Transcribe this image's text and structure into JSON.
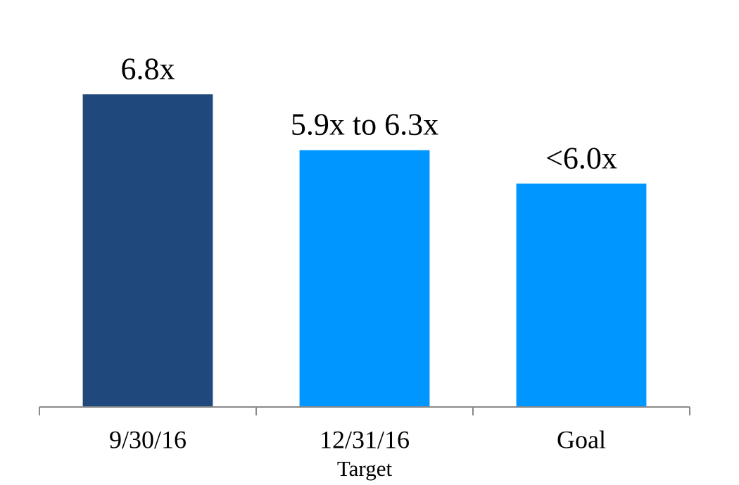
{
  "chart_data": {
    "type": "bar",
    "categories": [
      "9/30/16",
      "12/31/16",
      "Goal"
    ],
    "x_sublabels": [
      null,
      "Target",
      null
    ],
    "values": [
      6.8,
      6.3,
      6.0
    ],
    "value_labels": [
      "6.8x",
      "5.9x to 6.3x",
      "<6.0x"
    ],
    "colors": [
      "#1f497d",
      "#0096ff",
      "#0096ff"
    ],
    "ylim": [
      4,
      7.5
    ]
  }
}
